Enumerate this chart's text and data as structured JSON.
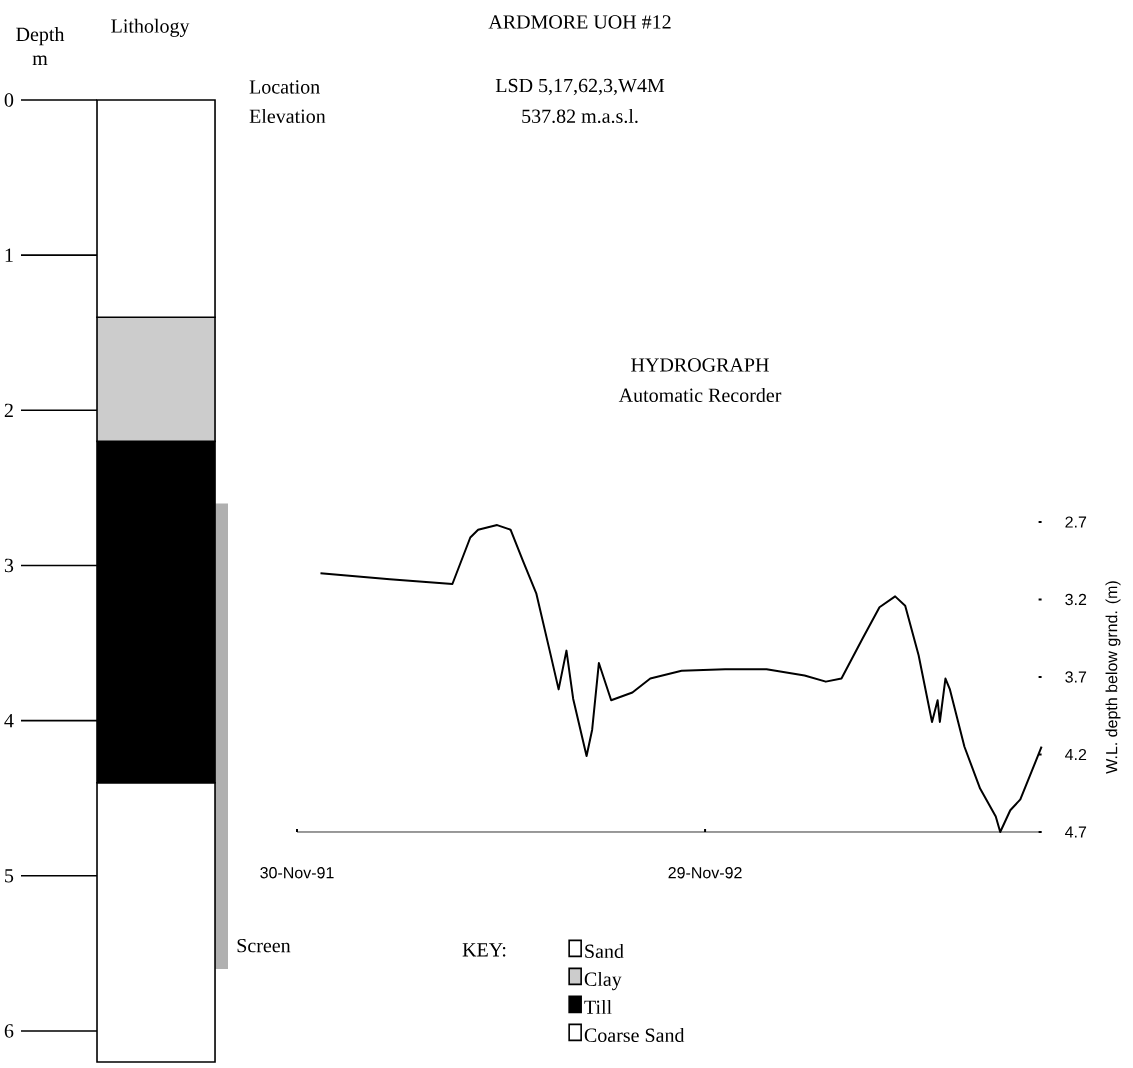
{
  "chart_data": [
    {
      "type": "bar",
      "stacked": true,
      "xlabel": "Lithology",
      "ylabel": "Depth m",
      "legend_title": "KEY:",
      "legend": "right",
      "categories": [
        null
      ],
      "series": [
        {
          "name": "Sand",
          "color": "#ffffff",
          "values": [
            1.4
          ]
        },
        {
          "name": "Clay",
          "color": "#cccccc",
          "values": [
            0.8
          ]
        },
        {
          "name": "Till",
          "color": "#000000",
          "values": [
            2.2
          ]
        },
        {
          "name": "Coarse Sand",
          "color": "#ffffff",
          "values": [
            1.8
          ]
        }
      ],
      "bands": [
        {
          "axis": "y",
          "from": 2.6,
          "to": 5.6,
          "label": "Screen",
          "color": "#b0b0b0"
        }
      ],
      "ylim": [
        6.2,
        0
      ],
      "yticks": [
        0,
        1,
        2,
        3,
        4,
        5,
        6
      ]
    },
    {
      "type": "line",
      "title": "ARDMORE UOH #12",
      "line_style": "solid",
      "ylabel": "W.L. depth below grnd. (m)",
      "annotations": [
        "Location",
        "LSD 5,17,62,3,W4M",
        "Elevation",
        "537.82 m.a.s.l.",
        "HYDROGRAPH",
        "Automatic Recorder"
      ],
      "x": [
        "1991-12-21",
        "1992-02-21",
        "1992-04-17",
        "1992-05-03",
        "1992-05-10",
        "1992-05-27",
        "1992-06-08",
        "1992-06-19",
        "1992-07-01",
        "1992-07-13",
        "1992-07-21",
        "1992-07-28",
        "1992-08-03",
        "1992-08-15",
        "1992-08-20",
        "1992-08-26",
        "1992-09-06",
        "1992-09-25",
        "1992-10-11",
        "1992-11-08",
        "1992-12-17",
        "1993-01-23",
        "1993-02-26",
        "1993-03-17",
        "1993-03-31",
        "1993-04-19",
        "1993-05-04",
        "1993-05-18",
        "1993-05-27",
        "1993-06-08",
        "1993-06-20",
        "1993-06-25",
        "1993-06-27",
        "1993-07-02",
        "1993-07-06",
        "1993-07-19",
        "1993-08-02",
        "1993-08-16",
        "1993-08-20",
        "1993-08-29",
        "1993-09-07",
        "1993-09-26"
      ],
      "series": [
        {
          "color": "#000000",
          "values": [
            3.03,
            3.07,
            3.1,
            2.8,
            2.75,
            2.72,
            2.75,
            2.95,
            3.16,
            3.53,
            3.78,
            3.53,
            3.84,
            4.21,
            4.04,
            3.61,
            3.85,
            3.8,
            3.71,
            3.66,
            3.65,
            3.65,
            3.69,
            3.73,
            3.71,
            3.45,
            3.25,
            3.18,
            3.24,
            3.56,
            3.99,
            3.85,
            3.99,
            3.71,
            3.78,
            4.15,
            4.42,
            4.6,
            4.7,
            4.56,
            4.49,
            4.15
          ]
        }
      ],
      "xlim": [
        "1991-11-30",
        "1993-09-26"
      ],
      "xticks": [
        {
          "value": "1991-11-30",
          "label": "30-Nov-91"
        },
        {
          "value": "1992-11-29",
          "label": "29-Nov-92"
        }
      ],
      "ylim": [
        4.7,
        2.7
      ],
      "yticks": [
        2.7,
        3.2,
        3.7,
        4.2,
        4.7
      ]
    }
  ]
}
